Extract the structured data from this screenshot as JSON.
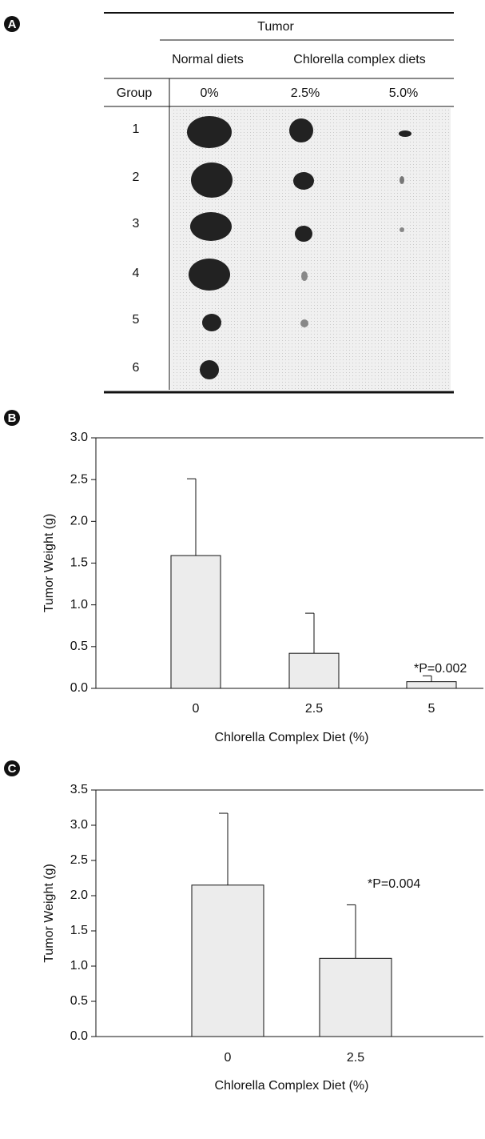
{
  "panel_a": {
    "label": "A",
    "header": "Tumor",
    "subheaders": [
      "Normal diets",
      "Chlorella complex diets"
    ],
    "columns": [
      "Group",
      "0%",
      "2.5%",
      "5.0%"
    ],
    "groups": [
      "1",
      "2",
      "3",
      "4",
      "5",
      "6"
    ]
  },
  "chart_data": [
    {
      "type": "bar",
      "panel": "B",
      "ylabel": "Tumor Weight (g)",
      "xlabel": "Chlorella Complex Diet (%)",
      "categories": [
        "0",
        "2.5",
        "5"
      ],
      "values": [
        1.59,
        0.42,
        0.08
      ],
      "errors": [
        0.92,
        0.48,
        0.07
      ],
      "color": "#ececec",
      "ylim": [
        0,
        3
      ],
      "yticks": [
        {
          "value": 0,
          "label": "0.0"
        },
        0.5,
        {
          "value": 1,
          "label": "1.0"
        },
        1.5,
        {
          "value": 2,
          "label": "2.0"
        },
        2.5,
        {
          "value": 3,
          "label": "3.0"
        }
      ],
      "annotation": "*P=0.002"
    },
    {
      "type": "bar",
      "panel": "C",
      "ylabel": "Tumor Weight (g)",
      "xlabel": "Chlorella Complex Diet (%)",
      "categories": [
        "0",
        "2.5"
      ],
      "values": [
        2.15,
        1.11
      ],
      "errors": [
        1.02,
        0.76
      ],
      "color": "#ececec",
      "ylim": [
        0,
        3.5
      ],
      "yticks": [
        {
          "value": 0,
          "label": "0.0"
        },
        0.5,
        {
          "value": 1,
          "label": "1.0"
        },
        1.5,
        {
          "value": 2,
          "label": "2.0"
        },
        2.5,
        {
          "value": 3,
          "label": "3.0"
        },
        3.5
      ],
      "annotation": "*P=0.004"
    }
  ]
}
